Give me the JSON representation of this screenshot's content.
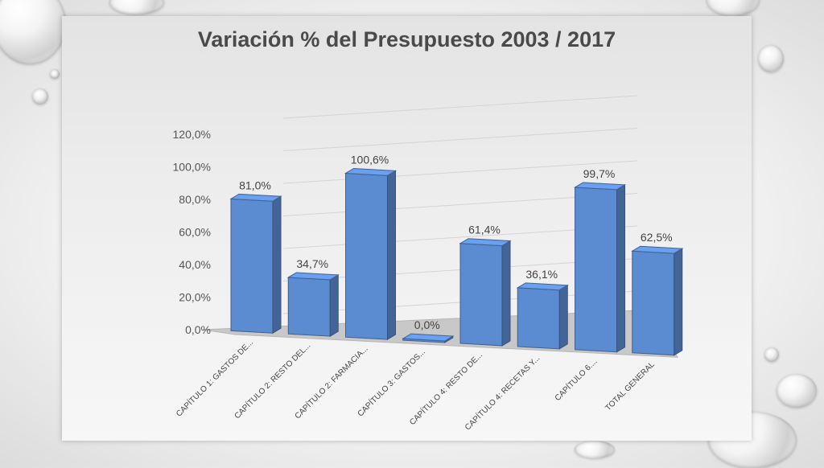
{
  "chart_data": {
    "type": "bar",
    "title": "Variación % del Presupuesto 2003 / 2017",
    "xlabel": "",
    "ylabel": "",
    "ylim": [
      0,
      120
    ],
    "yticks": [
      "0,0%",
      "20,0%",
      "40,0%",
      "60,0%",
      "80,0%",
      "100,0%",
      "120,0%"
    ],
    "categories": [
      "CAPÍTULO 1: GASTOS DE...",
      "CAPÍTULO 2: RESTO DEL...",
      "CAPÍTULO 2: FARMACIA...",
      "CAPÍTULO 3: GASTOS...",
      "CAPÍTULO 4: RESTO DE...",
      "CAPÍTULO 4: RECETAS Y...",
      "CAPÍTULO 6....",
      "TOTAL GENERAL"
    ],
    "values": [
      81.0,
      34.7,
      100.6,
      0.0,
      61.4,
      36.1,
      99.7,
      62.5
    ],
    "data_labels": [
      "81,0%",
      "34,7%",
      "100,6%",
      "0,0%",
      "61,4%",
      "36,1%",
      "99,7%",
      "62,5%"
    ],
    "grid": true,
    "bar_color": "#5b8bd0"
  }
}
